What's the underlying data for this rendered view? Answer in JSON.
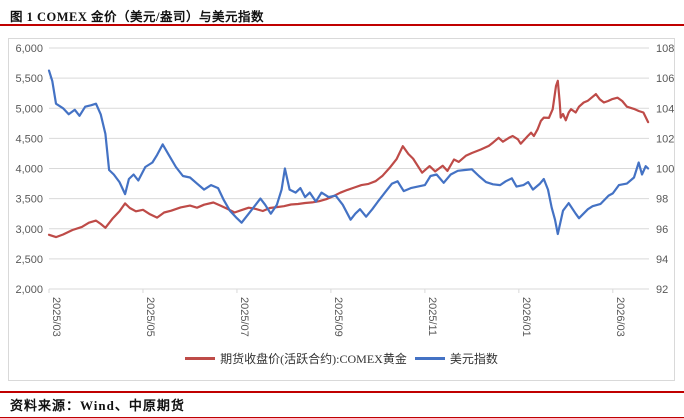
{
  "header": {
    "title": "图 1 COMEX 金价（美元/盎司）与美元指数"
  },
  "footer": {
    "source_label": "资料来源：Wind、中原期货"
  },
  "colors": {
    "gold_line": "#BE4B48",
    "dxy_line": "#4472C4",
    "rule_red": "#C00000",
    "grid": "#D9D9D9",
    "axis_text": "#595959"
  },
  "legend": [
    {
      "label": "期货收盘价(活跃合约):COMEX黄金",
      "color": "#BE4B48"
    },
    {
      "label": "美元指数",
      "color": "#4472C4"
    }
  ],
  "chart_data": {
    "type": "line",
    "title": "图 1 COMEX 金价（美元/盎司）与美元指数",
    "grid": "horizontal-only",
    "legend_position": "bottom-center",
    "x_axis": {
      "tick_labels": [
        "2025/03",
        "2025/05",
        "2025/07",
        "2025/09",
        "2025/11",
        "2026/01",
        "2026/03"
      ],
      "tick_positions_months": [
        0,
        2,
        4,
        6,
        8,
        10,
        12
      ],
      "domain_months": [
        0,
        12.77
      ],
      "label_rotation_deg": 90
    },
    "y_left": {
      "label": "期货收盘价(活跃合约):COMEX黄金 (美元/盎司)",
      "min": 2000,
      "max": 6000,
      "step": 500,
      "tick_labels": [
        "2,000",
        "2,500",
        "3,000",
        "3,500",
        "4,000",
        "4,500",
        "5,000",
        "5,500",
        "6,000"
      ]
    },
    "y_right": {
      "label": "美元指数",
      "min": 92,
      "max": 108,
      "step": 2,
      "tick_labels": [
        "92",
        "94",
        "96",
        "98",
        "100",
        "102",
        "104",
        "106",
        "108"
      ]
    },
    "series": [
      {
        "name": "期货收盘价(活跃合约):COMEX黄金",
        "axis": "left",
        "color": "#BE4B48",
        "points": [
          [
            0,
            2900
          ],
          [
            0.15,
            2862
          ],
          [
            0.3,
            2905
          ],
          [
            0.5,
            2980
          ],
          [
            0.7,
            3030
          ],
          [
            0.85,
            3100
          ],
          [
            1.0,
            3135
          ],
          [
            1.1,
            3080
          ],
          [
            1.2,
            3015
          ],
          [
            1.35,
            3165
          ],
          [
            1.5,
            3290
          ],
          [
            1.62,
            3420
          ],
          [
            1.72,
            3345
          ],
          [
            1.85,
            3290
          ],
          [
            2.0,
            3315
          ],
          [
            2.15,
            3240
          ],
          [
            2.3,
            3185
          ],
          [
            2.45,
            3270
          ],
          [
            2.6,
            3300
          ],
          [
            2.8,
            3355
          ],
          [
            3.0,
            3385
          ],
          [
            3.15,
            3350
          ],
          [
            3.3,
            3400
          ],
          [
            3.5,
            3435
          ],
          [
            3.65,
            3385
          ],
          [
            3.8,
            3330
          ],
          [
            3.95,
            3270
          ],
          [
            4.1,
            3310
          ],
          [
            4.25,
            3350
          ],
          [
            4.4,
            3330
          ],
          [
            4.55,
            3295
          ],
          [
            4.7,
            3345
          ],
          [
            4.85,
            3360
          ],
          [
            5.0,
            3375
          ],
          [
            5.15,
            3402
          ],
          [
            5.3,
            3410
          ],
          [
            5.45,
            3428
          ],
          [
            5.6,
            3438
          ],
          [
            5.75,
            3458
          ],
          [
            5.9,
            3490
          ],
          [
            6.05,
            3540
          ],
          [
            6.2,
            3598
          ],
          [
            6.35,
            3645
          ],
          [
            6.5,
            3685
          ],
          [
            6.65,
            3725
          ],
          [
            6.8,
            3745
          ],
          [
            6.95,
            3790
          ],
          [
            7.1,
            3880
          ],
          [
            7.25,
            4010
          ],
          [
            7.4,
            4160
          ],
          [
            7.53,
            4370
          ],
          [
            7.65,
            4240
          ],
          [
            7.75,
            4165
          ],
          [
            7.94,
            3930
          ],
          [
            8.1,
            4040
          ],
          [
            8.22,
            3952
          ],
          [
            8.38,
            4045
          ],
          [
            8.48,
            3960
          ],
          [
            8.62,
            4150
          ],
          [
            8.72,
            4110
          ],
          [
            8.87,
            4210
          ],
          [
            9.0,
            4258
          ],
          [
            9.19,
            4315
          ],
          [
            9.36,
            4375
          ],
          [
            9.45,
            4430
          ],
          [
            9.57,
            4510
          ],
          [
            9.66,
            4445
          ],
          [
            9.79,
            4510
          ],
          [
            9.87,
            4540
          ],
          [
            9.98,
            4485
          ],
          [
            10.04,
            4412
          ],
          [
            10.19,
            4540
          ],
          [
            10.26,
            4595
          ],
          [
            10.32,
            4540
          ],
          [
            10.4,
            4650
          ],
          [
            10.47,
            4790
          ],
          [
            10.53,
            4845
          ],
          [
            10.64,
            4840
          ],
          [
            10.72,
            4985
          ],
          [
            10.79,
            5370
          ],
          [
            10.83,
            5455
          ],
          [
            10.87,
            5100
          ],
          [
            10.89,
            4845
          ],
          [
            10.94,
            4905
          ],
          [
            11.0,
            4800
          ],
          [
            11.06,
            4930
          ],
          [
            11.11,
            4985
          ],
          [
            11.21,
            4930
          ],
          [
            11.28,
            5025
          ],
          [
            11.38,
            5095
          ],
          [
            11.47,
            5125
          ],
          [
            11.57,
            5190
          ],
          [
            11.64,
            5235
          ],
          [
            11.72,
            5150
          ],
          [
            11.81,
            5095
          ],
          [
            11.9,
            5120
          ],
          [
            11.98,
            5150
          ],
          [
            12.1,
            5175
          ],
          [
            12.2,
            5120
          ],
          [
            12.3,
            5025
          ],
          [
            12.45,
            4990
          ],
          [
            12.55,
            4955
          ],
          [
            12.65,
            4930
          ],
          [
            12.75,
            4770
          ]
        ]
      },
      {
        "name": "美元指数",
        "axis": "right",
        "color": "#4472C4",
        "points": [
          [
            0,
            106.5
          ],
          [
            0.07,
            105.8
          ],
          [
            0.15,
            104.3
          ],
          [
            0.3,
            104.0
          ],
          [
            0.42,
            103.6
          ],
          [
            0.55,
            103.9
          ],
          [
            0.65,
            103.5
          ],
          [
            0.77,
            104.1
          ],
          [
            0.9,
            104.2
          ],
          [
            1.0,
            104.3
          ],
          [
            1.1,
            103.6
          ],
          [
            1.2,
            102.3
          ],
          [
            1.28,
            99.9
          ],
          [
            1.38,
            99.6
          ],
          [
            1.5,
            99.1
          ],
          [
            1.62,
            98.3
          ],
          [
            1.7,
            99.3
          ],
          [
            1.8,
            99.6
          ],
          [
            1.9,
            99.2
          ],
          [
            2.05,
            100.1
          ],
          [
            2.2,
            100.4
          ],
          [
            2.3,
            100.9
          ],
          [
            2.42,
            101.6
          ],
          [
            2.55,
            100.9
          ],
          [
            2.7,
            100.1
          ],
          [
            2.85,
            99.5
          ],
          [
            3.0,
            99.4
          ],
          [
            3.15,
            99.0
          ],
          [
            3.3,
            98.6
          ],
          [
            3.45,
            98.9
          ],
          [
            3.6,
            98.7
          ],
          [
            3.72,
            97.9
          ],
          [
            3.85,
            97.2
          ],
          [
            4.0,
            96.7
          ],
          [
            4.1,
            96.4
          ],
          [
            4.25,
            97.0
          ],
          [
            4.4,
            97.6
          ],
          [
            4.5,
            98.0
          ],
          [
            4.6,
            97.6
          ],
          [
            4.72,
            97.0
          ],
          [
            4.85,
            97.6
          ],
          [
            4.95,
            98.6
          ],
          [
            5.02,
            100.0
          ],
          [
            5.12,
            98.6
          ],
          [
            5.25,
            98.4
          ],
          [
            5.35,
            98.7
          ],
          [
            5.45,
            98.1
          ],
          [
            5.55,
            98.4
          ],
          [
            5.68,
            97.8
          ],
          [
            5.8,
            98.4
          ],
          [
            5.95,
            98.1
          ],
          [
            6.1,
            98.2
          ],
          [
            6.25,
            97.6
          ],
          [
            6.42,
            96.6
          ],
          [
            6.52,
            97.0
          ],
          [
            6.62,
            97.3
          ],
          [
            6.75,
            96.8
          ],
          [
            6.88,
            97.3
          ],
          [
            7.0,
            97.8
          ],
          [
            7.15,
            98.4
          ],
          [
            7.3,
            99.0
          ],
          [
            7.42,
            99.15
          ],
          [
            7.55,
            98.5
          ],
          [
            7.7,
            98.7
          ],
          [
            7.85,
            98.8
          ],
          [
            8.0,
            98.9
          ],
          [
            8.12,
            99.5
          ],
          [
            8.25,
            99.6
          ],
          [
            8.4,
            99.05
          ],
          [
            8.55,
            99.6
          ],
          [
            8.7,
            99.85
          ],
          [
            8.85,
            99.9
          ],
          [
            9.0,
            99.95
          ],
          [
            9.15,
            99.5
          ],
          [
            9.3,
            99.1
          ],
          [
            9.45,
            98.95
          ],
          [
            9.6,
            98.9
          ],
          [
            9.72,
            99.15
          ],
          [
            9.85,
            99.35
          ],
          [
            9.95,
            98.8
          ],
          [
            10.1,
            98.9
          ],
          [
            10.2,
            99.1
          ],
          [
            10.3,
            98.6
          ],
          [
            10.45,
            99.0
          ],
          [
            10.53,
            99.3
          ],
          [
            10.62,
            98.6
          ],
          [
            10.7,
            97.4
          ],
          [
            10.77,
            96.6
          ],
          [
            10.83,
            95.65
          ],
          [
            10.94,
            97.2
          ],
          [
            11.06,
            97.7
          ],
          [
            11.21,
            97.0
          ],
          [
            11.28,
            96.7
          ],
          [
            11.47,
            97.3
          ],
          [
            11.57,
            97.5
          ],
          [
            11.74,
            97.65
          ],
          [
            11.91,
            98.2
          ],
          [
            12.0,
            98.35
          ],
          [
            12.13,
            98.9
          ],
          [
            12.3,
            99.0
          ],
          [
            12.45,
            99.4
          ],
          [
            12.55,
            100.4
          ],
          [
            12.62,
            99.6
          ],
          [
            12.7,
            100.15
          ],
          [
            12.75,
            100.0
          ]
        ]
      }
    ]
  }
}
